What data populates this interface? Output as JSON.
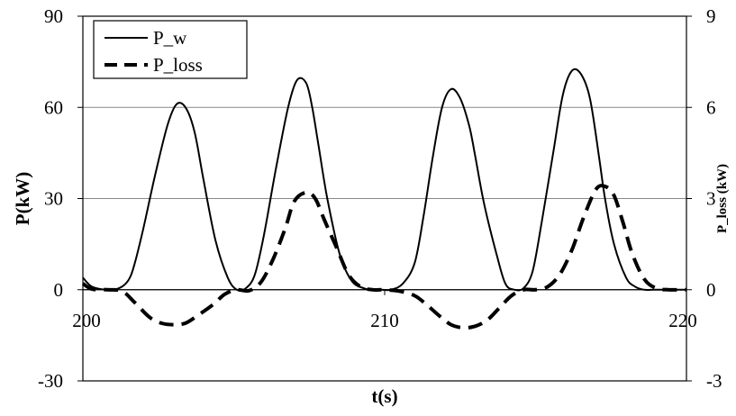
{
  "chart_data": {
    "type": "line",
    "title": "",
    "xlabel": "t(s)",
    "ylabel": "P(kW)",
    "y2label": "P_loss (kW)",
    "xlim": [
      200,
      220
    ],
    "ylim": [
      -30,
      90
    ],
    "y2lim": [
      -3,
      9
    ],
    "x_ticks": [
      200,
      210,
      220
    ],
    "y_ticks": [
      -30,
      0,
      30,
      60,
      90
    ],
    "y2_ticks": [
      -3,
      0,
      3,
      6,
      9
    ],
    "grid": "horizontal",
    "legend_position": "top-left",
    "series": [
      {
        "name": "P_w",
        "axis": "left",
        "style": "solid",
        "color": "#000000",
        "x": [
          200,
          200.3,
          200.8,
          201.2,
          201.5,
          201.7,
          202.0,
          202.4,
          202.8,
          203.1,
          203.4,
          203.7,
          204.0,
          204.4,
          204.8,
          205.1,
          205.4,
          205.7,
          206.0,
          206.4,
          206.8,
          207.1,
          207.4,
          207.6,
          207.8,
          208.1,
          208.5,
          208.9,
          209.3,
          209.6,
          209.9,
          210.2,
          210.6,
          211.0,
          211.3,
          211.6,
          211.9,
          212.2,
          212.5,
          212.8,
          213.0,
          213.3,
          213.7,
          214.0,
          214.3,
          214.6,
          214.9,
          215.2,
          215.6,
          215.9,
          216.2,
          216.5,
          216.8,
          217.1,
          217.3,
          217.6,
          218.0,
          218.3,
          218.6,
          218.9,
          219.2,
          219.5,
          220
        ],
        "values": [
          4,
          1,
          0,
          0.5,
          3,
          8,
          20,
          38,
          54,
          61,
          60,
          52,
          36,
          16,
          4,
          0,
          0.5,
          5,
          18,
          40,
          60,
          69,
          68,
          60,
          48,
          30,
          12,
          3,
          0.5,
          0,
          0,
          0,
          2,
          9,
          25,
          44,
          60,
          66,
          63,
          54,
          44,
          28,
          12,
          2,
          0,
          0.5,
          6,
          22,
          46,
          64,
          72,
          71,
          63,
          44,
          30,
          15,
          4,
          1,
          0,
          0,
          0,
          0,
          0
        ]
      },
      {
        "name": "P_loss",
        "axis": "right",
        "style": "dashed",
        "color": "#000000",
        "x": [
          200,
          200.3,
          200.8,
          201.3,
          201.7,
          202.2,
          202.6,
          203.0,
          203.4,
          203.8,
          204.3,
          204.7,
          205.1,
          205.5,
          205.9,
          206.3,
          206.7,
          207.0,
          207.4,
          207.7,
          208.0,
          208.4,
          208.8,
          209.2,
          209.6,
          210.0,
          210.5,
          211.0,
          211.4,
          211.8,
          212.2,
          212.6,
          213.0,
          213.4,
          213.8,
          214.2,
          214.6,
          215.0,
          215.4,
          215.8,
          216.2,
          216.6,
          217.0,
          217.3,
          217.6,
          217.9,
          218.2,
          218.6,
          219.0,
          219.4,
          219.8,
          220
        ],
        "values": [
          0.2,
          0.02,
          0,
          -0.05,
          -0.4,
          -0.9,
          -1.1,
          -1.15,
          -1.1,
          -0.85,
          -0.5,
          -0.15,
          0,
          -0.03,
          0.25,
          1.0,
          2.0,
          2.9,
          3.2,
          3.0,
          2.3,
          1.4,
          0.5,
          0.1,
          0,
          0,
          -0.05,
          -0.2,
          -0.5,
          -0.85,
          -1.15,
          -1.25,
          -1.2,
          -1.0,
          -0.6,
          -0.2,
          0,
          0,
          0.1,
          0.5,
          1.3,
          2.4,
          3.3,
          3.4,
          3.1,
          2.2,
          1.2,
          0.35,
          0.05,
          0,
          0,
          0
        ]
      }
    ]
  }
}
